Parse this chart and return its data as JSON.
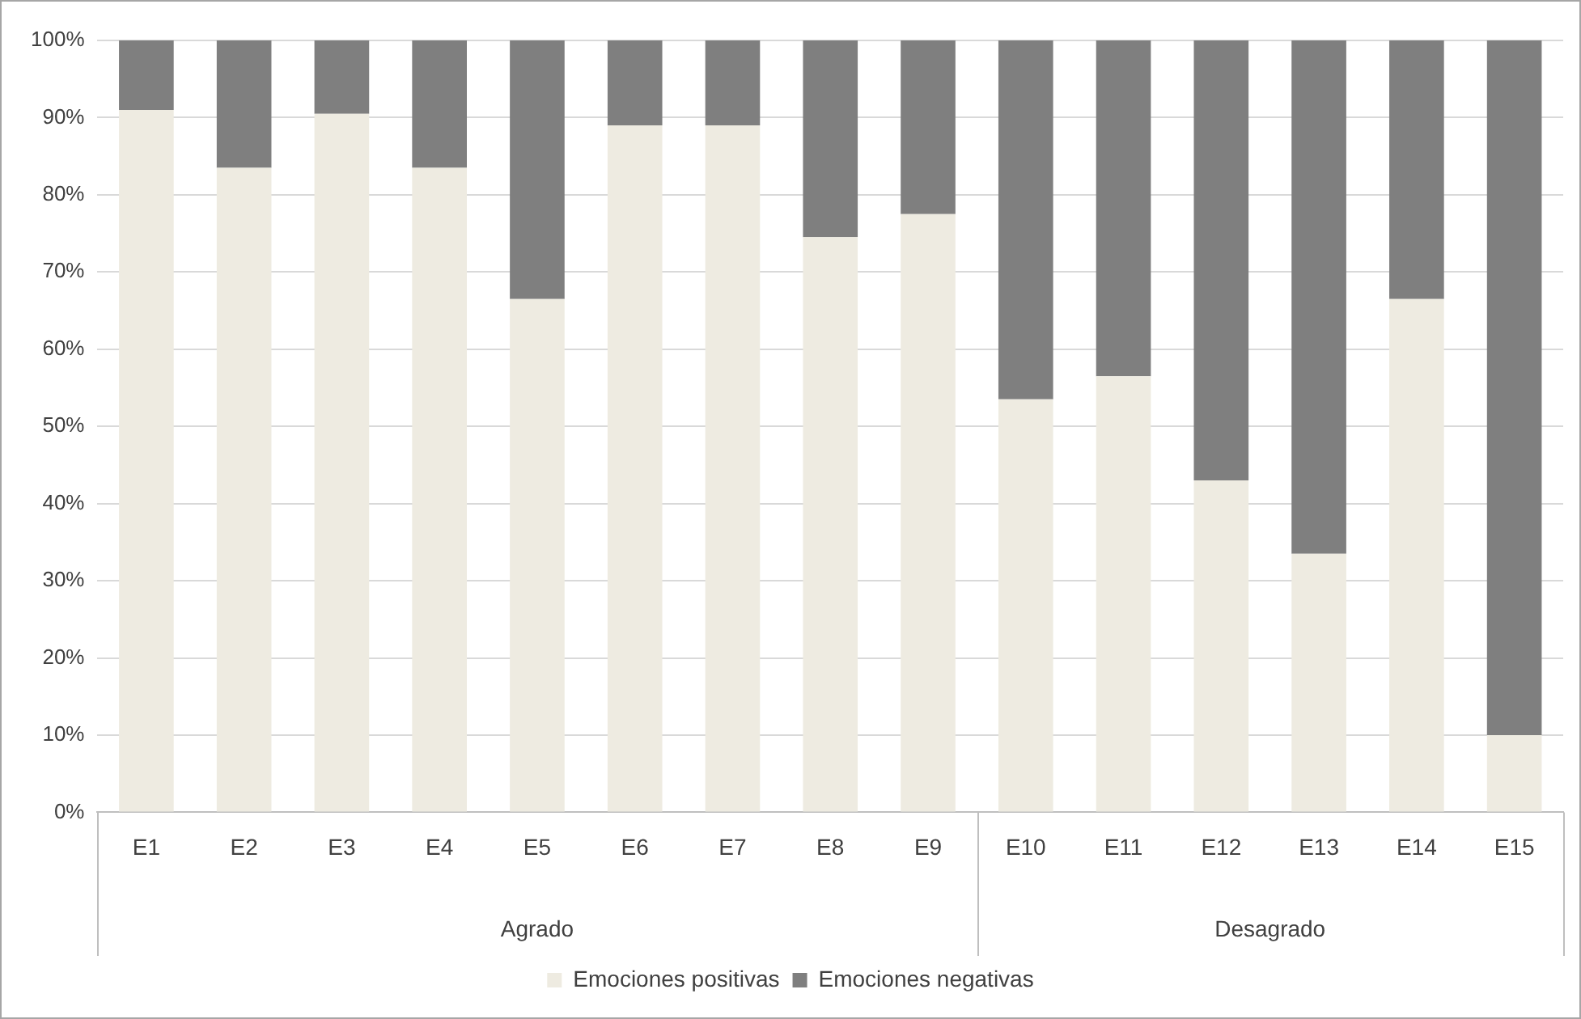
{
  "chart_data": {
    "type": "bar",
    "stacked": true,
    "categories": [
      "E1",
      "E2",
      "E3",
      "E4",
      "E5",
      "E6",
      "E7",
      "E8",
      "E9",
      "E10",
      "E11",
      "E12",
      "E13",
      "E14",
      "E15"
    ],
    "series": [
      {
        "name": "Emociones positivas",
        "color": "#eeebe1",
        "values": [
          91,
          83.5,
          90.5,
          83.5,
          66.5,
          89,
          89,
          74.5,
          77.5,
          53.5,
          56.5,
          43,
          33.5,
          66.5,
          10
        ]
      },
      {
        "name": "Emociones negativas",
        "color": "#7f7f7f",
        "values": [
          9,
          16.5,
          9.5,
          16.5,
          33.5,
          11,
          11,
          25.5,
          22.5,
          46.5,
          43.5,
          57,
          66.5,
          33.5,
          90
        ]
      }
    ],
    "ylim": [
      0,
      100
    ],
    "yticks": [
      {
        "value": 0,
        "label": "0%"
      },
      {
        "value": 10,
        "label": "10%"
      },
      {
        "value": 20,
        "label": "20%"
      },
      {
        "value": 30,
        "label": "30%"
      },
      {
        "value": 40,
        "label": "40%"
      },
      {
        "value": 50,
        "label": "50%"
      },
      {
        "value": 60,
        "label": "60%"
      },
      {
        "value": 70,
        "label": "70%"
      },
      {
        "value": 80,
        "label": "80%"
      },
      {
        "value": 90,
        "label": "90%"
      },
      {
        "value": 100,
        "label": "100%"
      }
    ],
    "grid": "y",
    "legend": "bottom",
    "annotations": [
      "Agrado",
      "Desagrado"
    ]
  }
}
